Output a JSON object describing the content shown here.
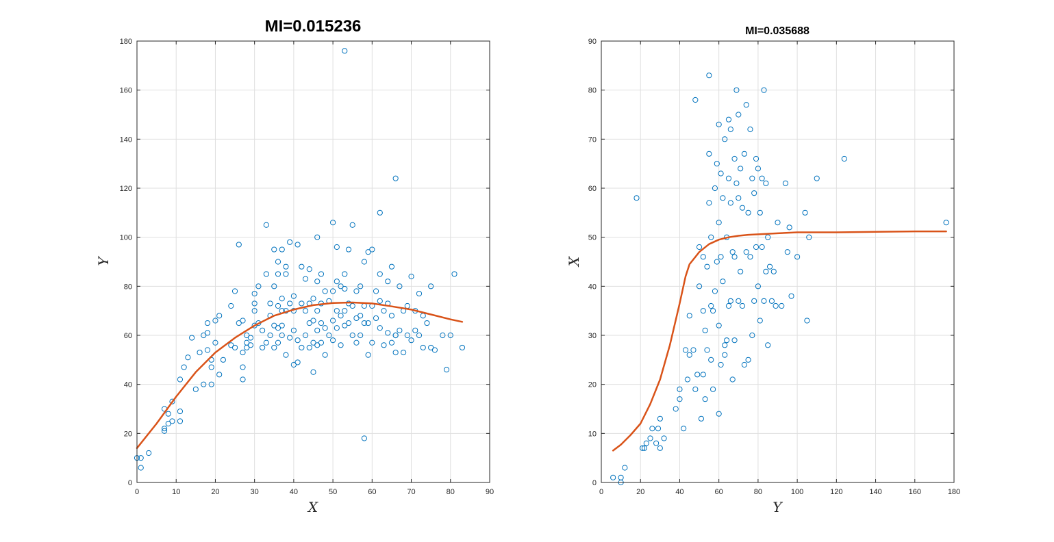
{
  "colors": {
    "marker": "#0072BD",
    "fit": "#D95319",
    "grid": "#dfdfdf",
    "axis": "#262626"
  },
  "chart_data": [
    {
      "type": "scatter",
      "title": "MI=0.015236",
      "xlabel": "X",
      "ylabel": "Y",
      "xlim": [
        0,
        90
      ],
      "ylim": [
        0,
        180
      ],
      "xticks": [
        0,
        10,
        20,
        30,
        40,
        50,
        60,
        70,
        80,
        90
      ],
      "yticks": [
        0,
        20,
        40,
        60,
        80,
        100,
        120,
        140,
        160,
        180
      ],
      "grid": true,
      "scatter_series": {
        "marker": "circle-open",
        "x": [
          0,
          1,
          1,
          3,
          7,
          7,
          7,
          8,
          8,
          9,
          9,
          11,
          11,
          11,
          12,
          13,
          14,
          15,
          16,
          17,
          17,
          18,
          18,
          18,
          19,
          19,
          19,
          20,
          20,
          21,
          21,
          22,
          24,
          24,
          25,
          25,
          26,
          26,
          27,
          27,
          27,
          27,
          28,
          28,
          28,
          29,
          29,
          30,
          30,
          30,
          30,
          31,
          31,
          32,
          32,
          33,
          33,
          33,
          34,
          34,
          34,
          35,
          35,
          35,
          35,
          36,
          36,
          36,
          36,
          36,
          37,
          37,
          37,
          37,
          37,
          38,
          38,
          38,
          38,
          39,
          39,
          39,
          40,
          40,
          40,
          40,
          41,
          41,
          41,
          42,
          42,
          42,
          43,
          43,
          43,
          44,
          44,
          44,
          44,
          45,
          45,
          45,
          45,
          46,
          46,
          46,
          46,
          46,
          47,
          47,
          47,
          47,
          48,
          48,
          48,
          49,
          49,
          50,
          50,
          50,
          50,
          51,
          51,
          51,
          51,
          52,
          52,
          52,
          53,
          53,
          53,
          53,
          54,
          54,
          54,
          55,
          55,
          55,
          56,
          56,
          56,
          57,
          57,
          57,
          58,
          58,
          58,
          59,
          59,
          59,
          60,
          60,
          60,
          61,
          61,
          62,
          62,
          62,
          63,
          63,
          64,
          64,
          64,
          65,
          65,
          65,
          66,
          66,
          66,
          67,
          67,
          68,
          68,
          69,
          69,
          70,
          70,
          71,
          71,
          72,
          72,
          73,
          73,
          74,
          75,
          75,
          76,
          78,
          79,
          80,
          81,
          83,
          53,
          58,
          66,
          62
        ],
        "y": [
          10,
          6,
          10,
          12,
          21,
          22,
          30,
          24,
          28,
          25,
          33,
          25,
          29,
          42,
          47,
          51,
          59,
          38,
          53,
          60,
          40,
          65,
          54,
          61,
          40,
          47,
          50,
          57,
          66,
          44,
          68,
          50,
          56,
          72,
          55,
          78,
          65,
          97,
          42,
          47,
          53,
          66,
          55,
          57,
          60,
          56,
          59,
          64,
          70,
          77,
          73,
          65,
          80,
          55,
          62,
          85,
          57,
          105,
          60,
          68,
          73,
          55,
          64,
          80,
          95,
          57,
          63,
          85,
          72,
          90,
          60,
          64,
          70,
          75,
          95,
          52,
          70,
          85,
          88,
          59,
          73,
          98,
          48,
          62,
          70,
          76,
          49,
          58,
          97,
          55,
          73,
          88,
          60,
          70,
          83,
          55,
          65,
          73,
          87,
          45,
          57,
          66,
          75,
          56,
          62,
          70,
          82,
          100,
          57,
          65,
          73,
          85,
          52,
          63,
          78,
          60,
          74,
          58,
          66,
          78,
          106,
          63,
          70,
          82,
          96,
          56,
          68,
          80,
          64,
          70,
          79,
          85,
          65,
          73,
          95,
          60,
          72,
          105,
          57,
          67,
          78,
          60,
          68,
          80,
          18,
          65,
          90,
          52,
          65,
          94,
          57,
          72,
          95,
          67,
          78,
          63,
          85,
          110,
          56,
          70,
          61,
          73,
          82,
          57,
          68,
          88,
          53,
          60,
          124,
          62,
          80,
          53,
          70,
          60,
          72,
          58,
          84,
          62,
          70,
          60,
          77,
          55,
          68,
          65,
          55,
          80,
          54,
          60,
          46,
          60,
          85,
          55,
          176,
          72,
          60,
          74
        ]
      },
      "line_series": {
        "x": [
          0,
          5,
          10,
          15,
          20,
          25,
          30,
          35,
          40,
          45,
          50,
          55,
          60,
          65,
          70,
          75,
          80,
          83
        ],
        "y": [
          14,
          24,
          35,
          45,
          53,
          59,
          64,
          68,
          70.5,
          72.3,
          73.2,
          73.4,
          73,
          71.8,
          70.5,
          68.5,
          66.5,
          65.5
        ]
      }
    },
    {
      "type": "scatter",
      "title": "MI=0.035688",
      "xlabel": "Y",
      "ylabel": "X",
      "xlim": [
        0,
        180
      ],
      "ylim": [
        0,
        90
      ],
      "xticks": [
        0,
        20,
        40,
        60,
        80,
        100,
        120,
        140,
        160,
        180
      ],
      "yticks": [
        0,
        10,
        20,
        30,
        40,
        50,
        60,
        70,
        80,
        90
      ],
      "grid": true,
      "scatter_series": {
        "marker": "circle-open",
        "x": [
          6,
          10,
          10,
          12,
          18,
          21,
          22,
          23,
          25,
          26,
          28,
          29,
          30,
          30,
          32,
          38,
          40,
          40,
          42,
          43,
          44,
          45,
          45,
          47,
          48,
          49,
          50,
          50,
          51,
          52,
          52,
          52,
          53,
          53,
          54,
          54,
          55,
          55,
          55,
          56,
          56,
          56,
          57,
          57,
          58,
          58,
          59,
          59,
          60,
          60,
          60,
          60,
          61,
          61,
          61,
          62,
          62,
          63,
          63,
          64,
          64,
          65,
          65,
          65,
          66,
          66,
          66,
          67,
          67,
          68,
          68,
          68,
          69,
          69,
          70,
          70,
          70,
          71,
          71,
          72,
          72,
          73,
          73,
          74,
          74,
          75,
          75,
          76,
          76,
          77,
          77,
          78,
          78,
          79,
          79,
          80,
          80,
          81,
          81,
          82,
          82,
          83,
          83,
          84,
          84,
          85,
          85,
          86,
          87,
          88,
          89,
          90,
          92,
          94,
          95,
          96,
          97,
          100,
          104,
          105,
          106,
          110,
          124,
          176,
          48,
          63
        ],
        "y": [
          1,
          0,
          1,
          3,
          58,
          7,
          7,
          8,
          9,
          11,
          8,
          11,
          7,
          13,
          9,
          15,
          17,
          19,
          11,
          27,
          21,
          26,
          34,
          27,
          19,
          22,
          40,
          48,
          13,
          22,
          35,
          46,
          17,
          31,
          27,
          44,
          57,
          67,
          83,
          25,
          36,
          50,
          19,
          35,
          39,
          60,
          45,
          65,
          14,
          32,
          53,
          73,
          24,
          46,
          63,
          41,
          58,
          28,
          70,
          29,
          50,
          36,
          62,
          74,
          37,
          57,
          72,
          21,
          47,
          66,
          29,
          46,
          61,
          80,
          37,
          58,
          75,
          43,
          64,
          36,
          56,
          24,
          67,
          47,
          77,
          25,
          55,
          46,
          72,
          30,
          62,
          37,
          59,
          48,
          66,
          40,
          64,
          33,
          55,
          48,
          62,
          37,
          80,
          43,
          61,
          28,
          50,
          44,
          37,
          43,
          36,
          53,
          36,
          61,
          47,
          52,
          38,
          46,
          55,
          33,
          50,
          62,
          66,
          53,
          78,
          26
        ]
      },
      "line_series": {
        "x": [
          6,
          10,
          15,
          20,
          25,
          30,
          35,
          40,
          43,
          45,
          50,
          55,
          60,
          65,
          70,
          75,
          80,
          90,
          100,
          120,
          140,
          160,
          176
        ],
        "y": [
          6.5,
          7.7,
          9.7,
          12,
          16,
          21,
          28,
          36.5,
          42,
          44.5,
          47,
          48.6,
          49.5,
          50,
          50.3,
          50.5,
          50.6,
          50.8,
          51,
          51,
          51.1,
          51.2,
          51.2
        ]
      }
    }
  ]
}
